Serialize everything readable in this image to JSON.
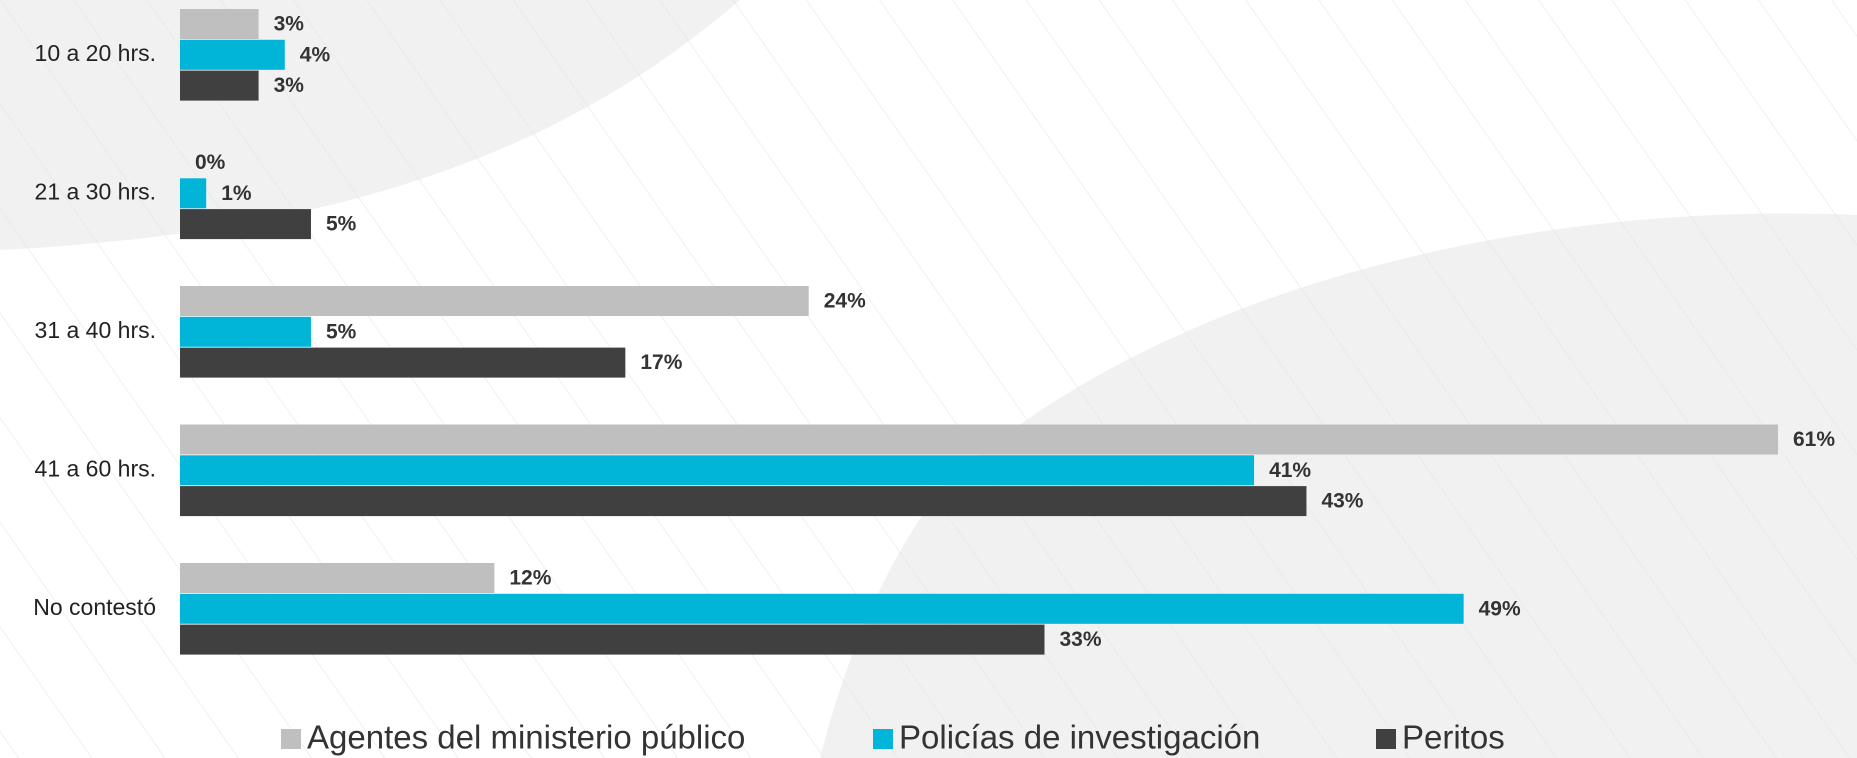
{
  "chart_data": {
    "type": "bar",
    "orientation": "horizontal",
    "categories": [
      "10 a 20 hrs.",
      "21 a 30 hrs.",
      "31 a 40 hrs.",
      "41 a 60 hrs.",
      "No contestó"
    ],
    "series": [
      {
        "name": "Agentes del ministerio público",
        "color": "#bfbfbf",
        "values": [
          3,
          0,
          24,
          61,
          12
        ],
        "value_labels": [
          "3%",
          "0%",
          "24%",
          "61%",
          "12%"
        ]
      },
      {
        "name": "Policías de investigación",
        "color": "#00b5d8",
        "values": [
          4,
          1,
          5,
          41,
          49
        ],
        "value_labels": [
          "4%",
          "1%",
          "5%",
          "41%",
          "49%"
        ]
      },
      {
        "name": "Peritos",
        "color": "#404040",
        "values": [
          3,
          5,
          17,
          43,
          33
        ],
        "value_labels": [
          "3%",
          "5%",
          "17%",
          "43%",
          "33%"
        ]
      }
    ],
    "legend": "bottom"
  }
}
